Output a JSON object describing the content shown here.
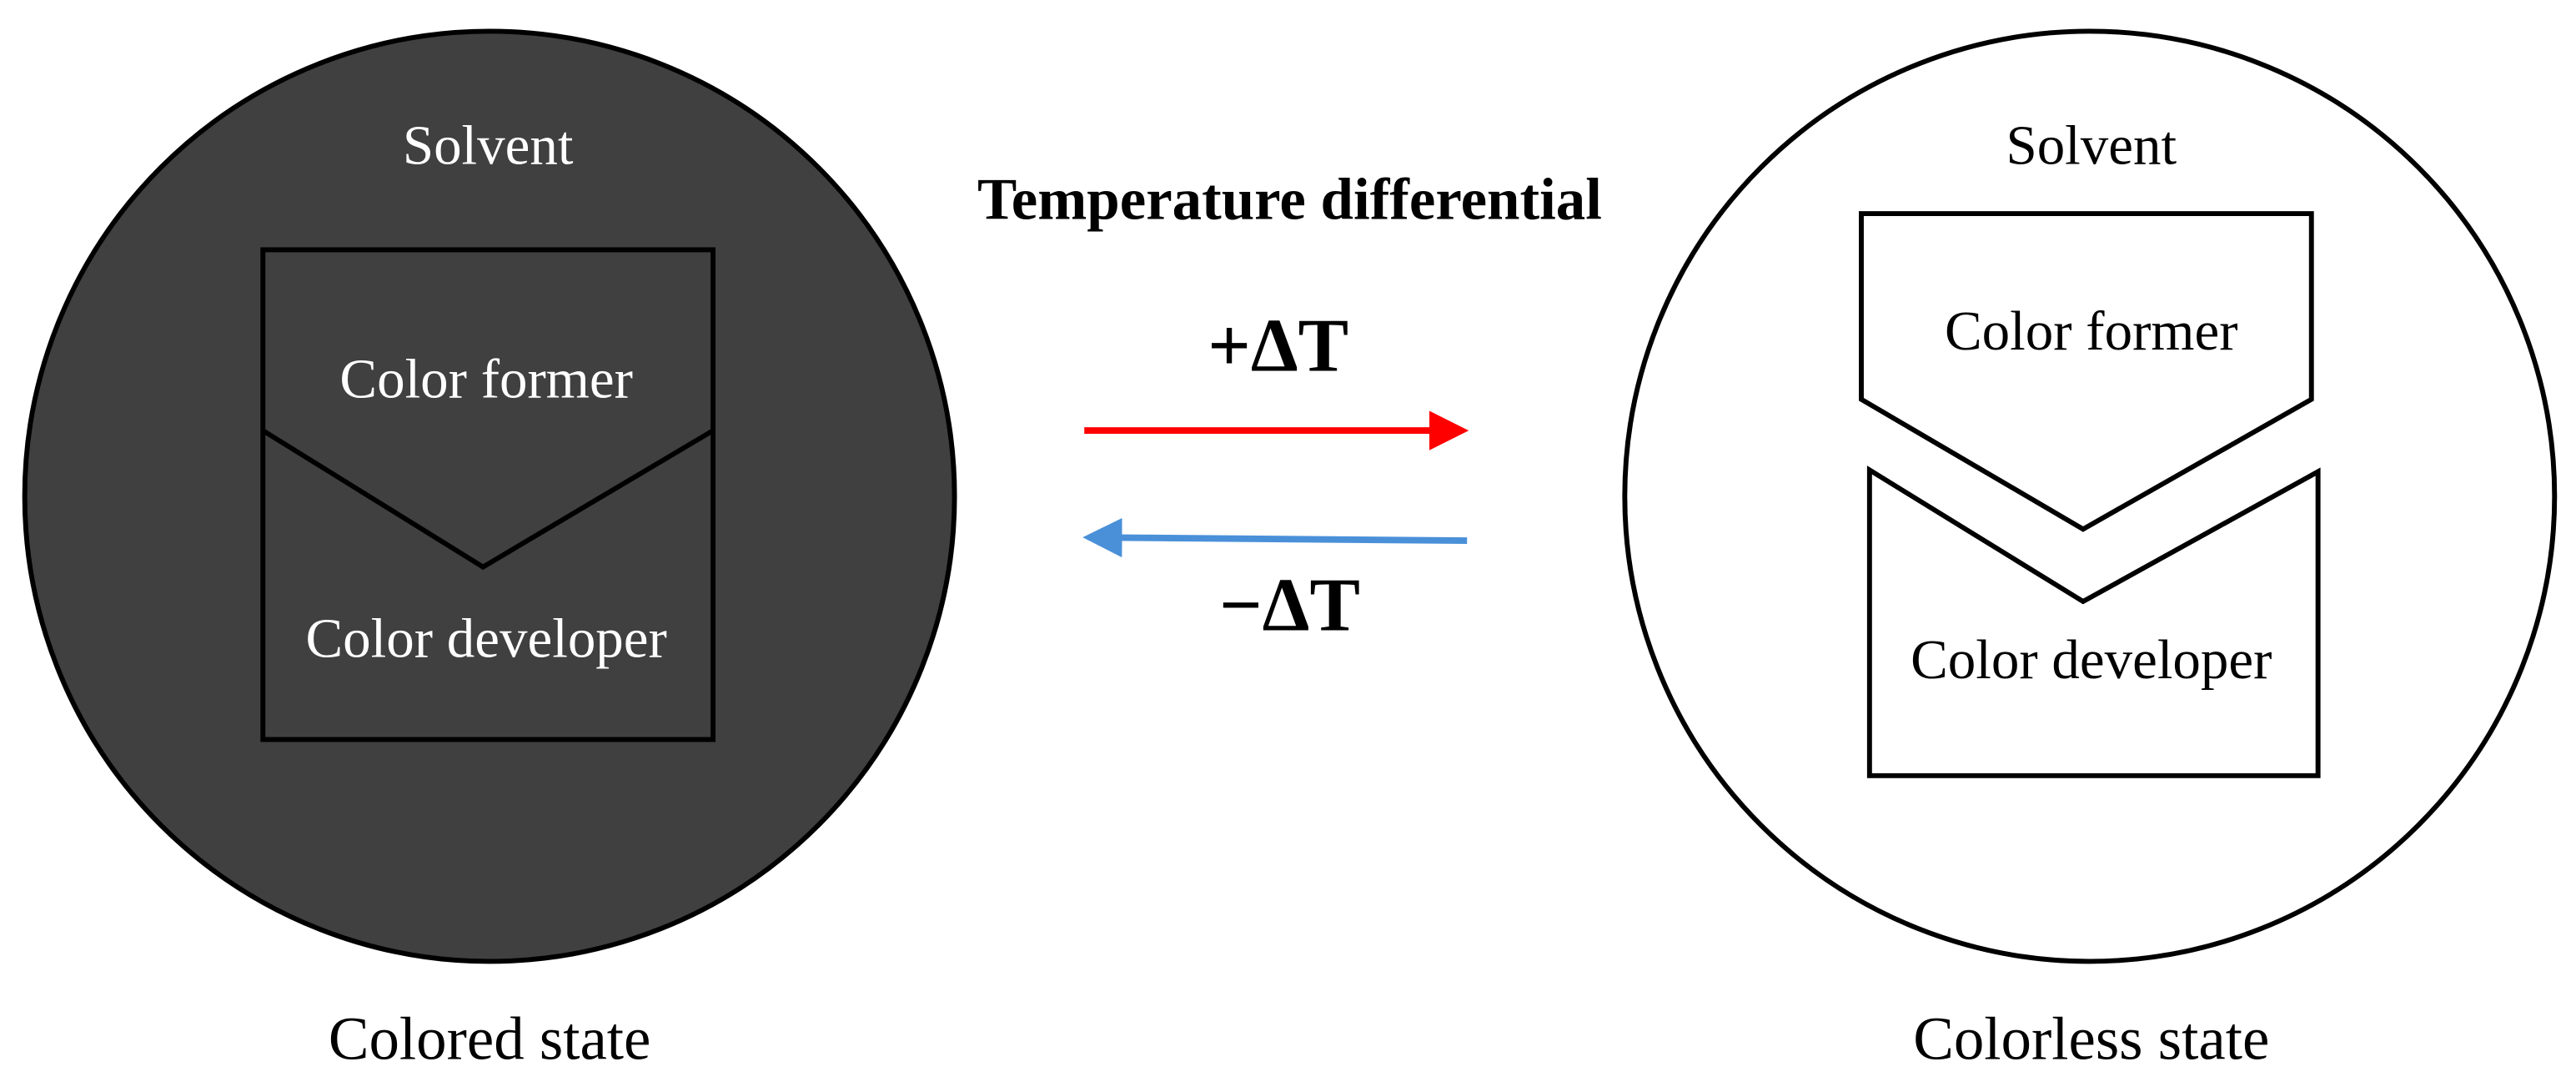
{
  "left": {
    "solvent": "Solvent",
    "former": "Color former",
    "developer": "Color developer",
    "caption": "Colored state"
  },
  "center": {
    "title": "Temperature differential",
    "heating": "+ΔT",
    "cooling": "−ΔT"
  },
  "right": {
    "solvent": "Solvent",
    "former": "Color former",
    "developer": "Color developer",
    "caption": "Colorless state"
  }
}
